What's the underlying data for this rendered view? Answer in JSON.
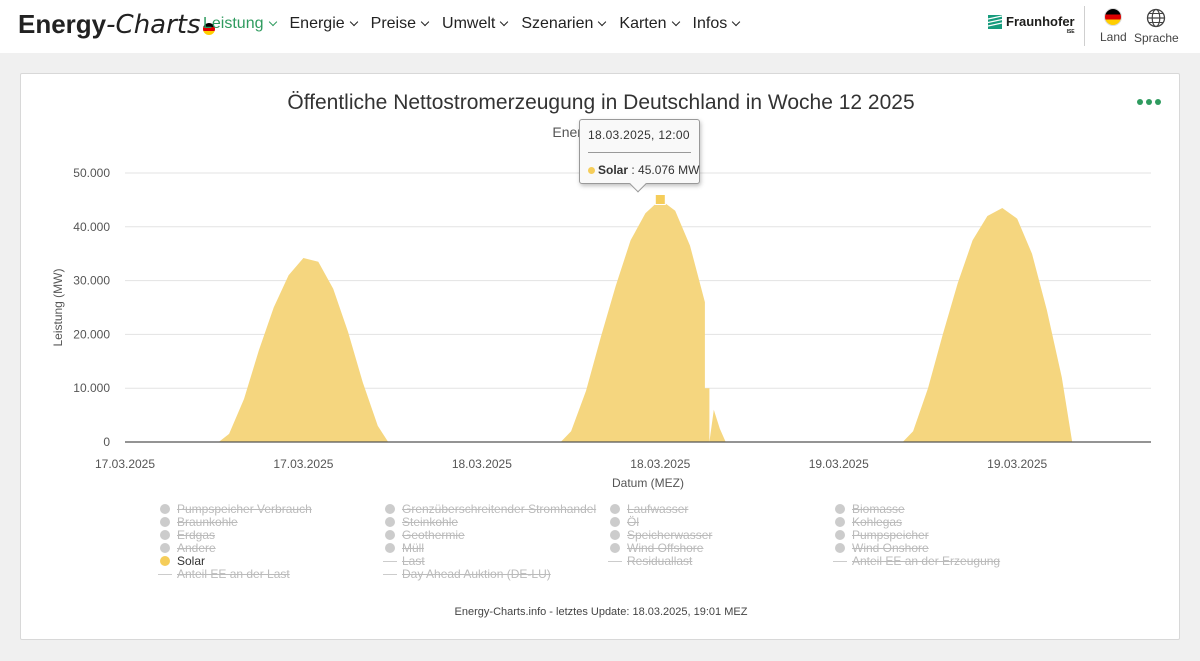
{
  "header": {
    "logo_bold": "Energy",
    "logo_light": "-Charts",
    "nav": [
      {
        "label": "Leistung",
        "active": true
      },
      {
        "label": "Energie",
        "active": false
      },
      {
        "label": "Preise",
        "active": false
      },
      {
        "label": "Umwelt",
        "active": false
      },
      {
        "label": "Szenarien",
        "active": false
      },
      {
        "label": "Karten",
        "active": false
      },
      {
        "label": "Infos",
        "active": false
      }
    ],
    "brand": "Fraunhofer",
    "brand_sub": "ISE",
    "country_label": "Land",
    "language_label": "Sprache"
  },
  "chart_data": {
    "type": "area",
    "title": "Öffentliche Nettostromerzeugung in Deutschland in Woche 12 2025",
    "subtitle": "Energetisch kor",
    "xlabel": "Datum (MEZ)",
    "ylabel": "Leistung (MW)",
    "ylim": [
      0,
      50000
    ],
    "yticks": [
      0,
      10000,
      20000,
      30000,
      40000,
      50000
    ],
    "ytick_labels": [
      "0",
      "10.000",
      "20.000",
      "30.000",
      "40.000",
      "50.000"
    ],
    "xticks": [
      0,
      12,
      24,
      36,
      48,
      60
    ],
    "xtick_labels": [
      "17.03.2025",
      "17.03.2025",
      "18.03.2025",
      "18.03.2025",
      "19.03.2025",
      "19.03.2025"
    ],
    "xlim": [
      0,
      69
    ],
    "series": [
      {
        "name": "Solar",
        "color": "#f5d67f",
        "x": [
          6.3,
          7.0,
          8.0,
          9.0,
          10.0,
          11.0,
          12.0,
          13.0,
          14.0,
          15.0,
          16.0,
          17.0,
          17.7,
          29.3,
          30.0,
          31.0,
          32.0,
          33.0,
          34.0,
          35.0,
          36.0,
          37.0,
          38.0,
          39.0,
          39.0,
          39.3,
          39.3,
          39.6,
          40.0,
          40.4,
          52.3,
          53.0,
          54.0,
          55.0,
          56.0,
          57.0,
          58.0,
          59.0,
          60.0,
          61.0,
          62.0,
          63.0,
          63.7
        ],
        "values": [
          0,
          1500,
          8000,
          17000,
          25000,
          31000,
          34200,
          33500,
          28500,
          20500,
          11000,
          3000,
          0,
          0,
          2000,
          9500,
          19500,
          29000,
          37500,
          42500,
          45076,
          43000,
          36500,
          26000,
          10000,
          10000,
          0,
          6000,
          2500,
          0,
          0,
          2000,
          10000,
          20000,
          29500,
          37500,
          42000,
          43500,
          41500,
          35000,
          24500,
          12000,
          0
        ]
      }
    ],
    "tooltip": {
      "date": "18.03.2025, 12:00",
      "series": "Solar",
      "value": "45.076 MW"
    },
    "legend": [
      {
        "label": "Pumpspeicher Verbrauch",
        "kind": "dot",
        "active": false
      },
      {
        "label": "Grenzüberschreitender Stromhandel",
        "kind": "dot",
        "active": false
      },
      {
        "label": "Laufwasser",
        "kind": "dot",
        "active": false
      },
      {
        "label": "Biomasse",
        "kind": "dot",
        "active": false
      },
      {
        "label": "Braunkohle",
        "kind": "dot",
        "active": false
      },
      {
        "label": "Steinkohle",
        "kind": "dot",
        "active": false
      },
      {
        "label": "Öl",
        "kind": "dot",
        "active": false
      },
      {
        "label": "Kohlegas",
        "kind": "dot",
        "active": false
      },
      {
        "label": "Erdgas",
        "kind": "dot",
        "active": false
      },
      {
        "label": "Geothermie",
        "kind": "dot",
        "active": false
      },
      {
        "label": "Speicherwasser",
        "kind": "dot",
        "active": false
      },
      {
        "label": "Pumpspeicher",
        "kind": "dot",
        "active": false
      },
      {
        "label": "Andere",
        "kind": "dot",
        "active": false
      },
      {
        "label": "Müll",
        "kind": "dot",
        "active": false
      },
      {
        "label": "Wind Offshore",
        "kind": "dot",
        "active": false
      },
      {
        "label": "Wind Onshore",
        "kind": "dot",
        "active": false
      },
      {
        "label": "Solar",
        "kind": "dot",
        "active": true
      },
      {
        "label": "Last",
        "kind": "line",
        "active": false
      },
      {
        "label": "Residuallast",
        "kind": "line",
        "active": false
      },
      {
        "label": "Anteil EE an der Erzeugung",
        "kind": "line",
        "active": false
      },
      {
        "label": "Anteil EE an der Last",
        "kind": "line",
        "active": false
      },
      {
        "label": "Day Ahead Auktion (DE-LU)",
        "kind": "line",
        "active": false
      }
    ]
  },
  "footer": "Energy-Charts.info - letztes Update: 18.03.2025, 19:01 MEZ"
}
